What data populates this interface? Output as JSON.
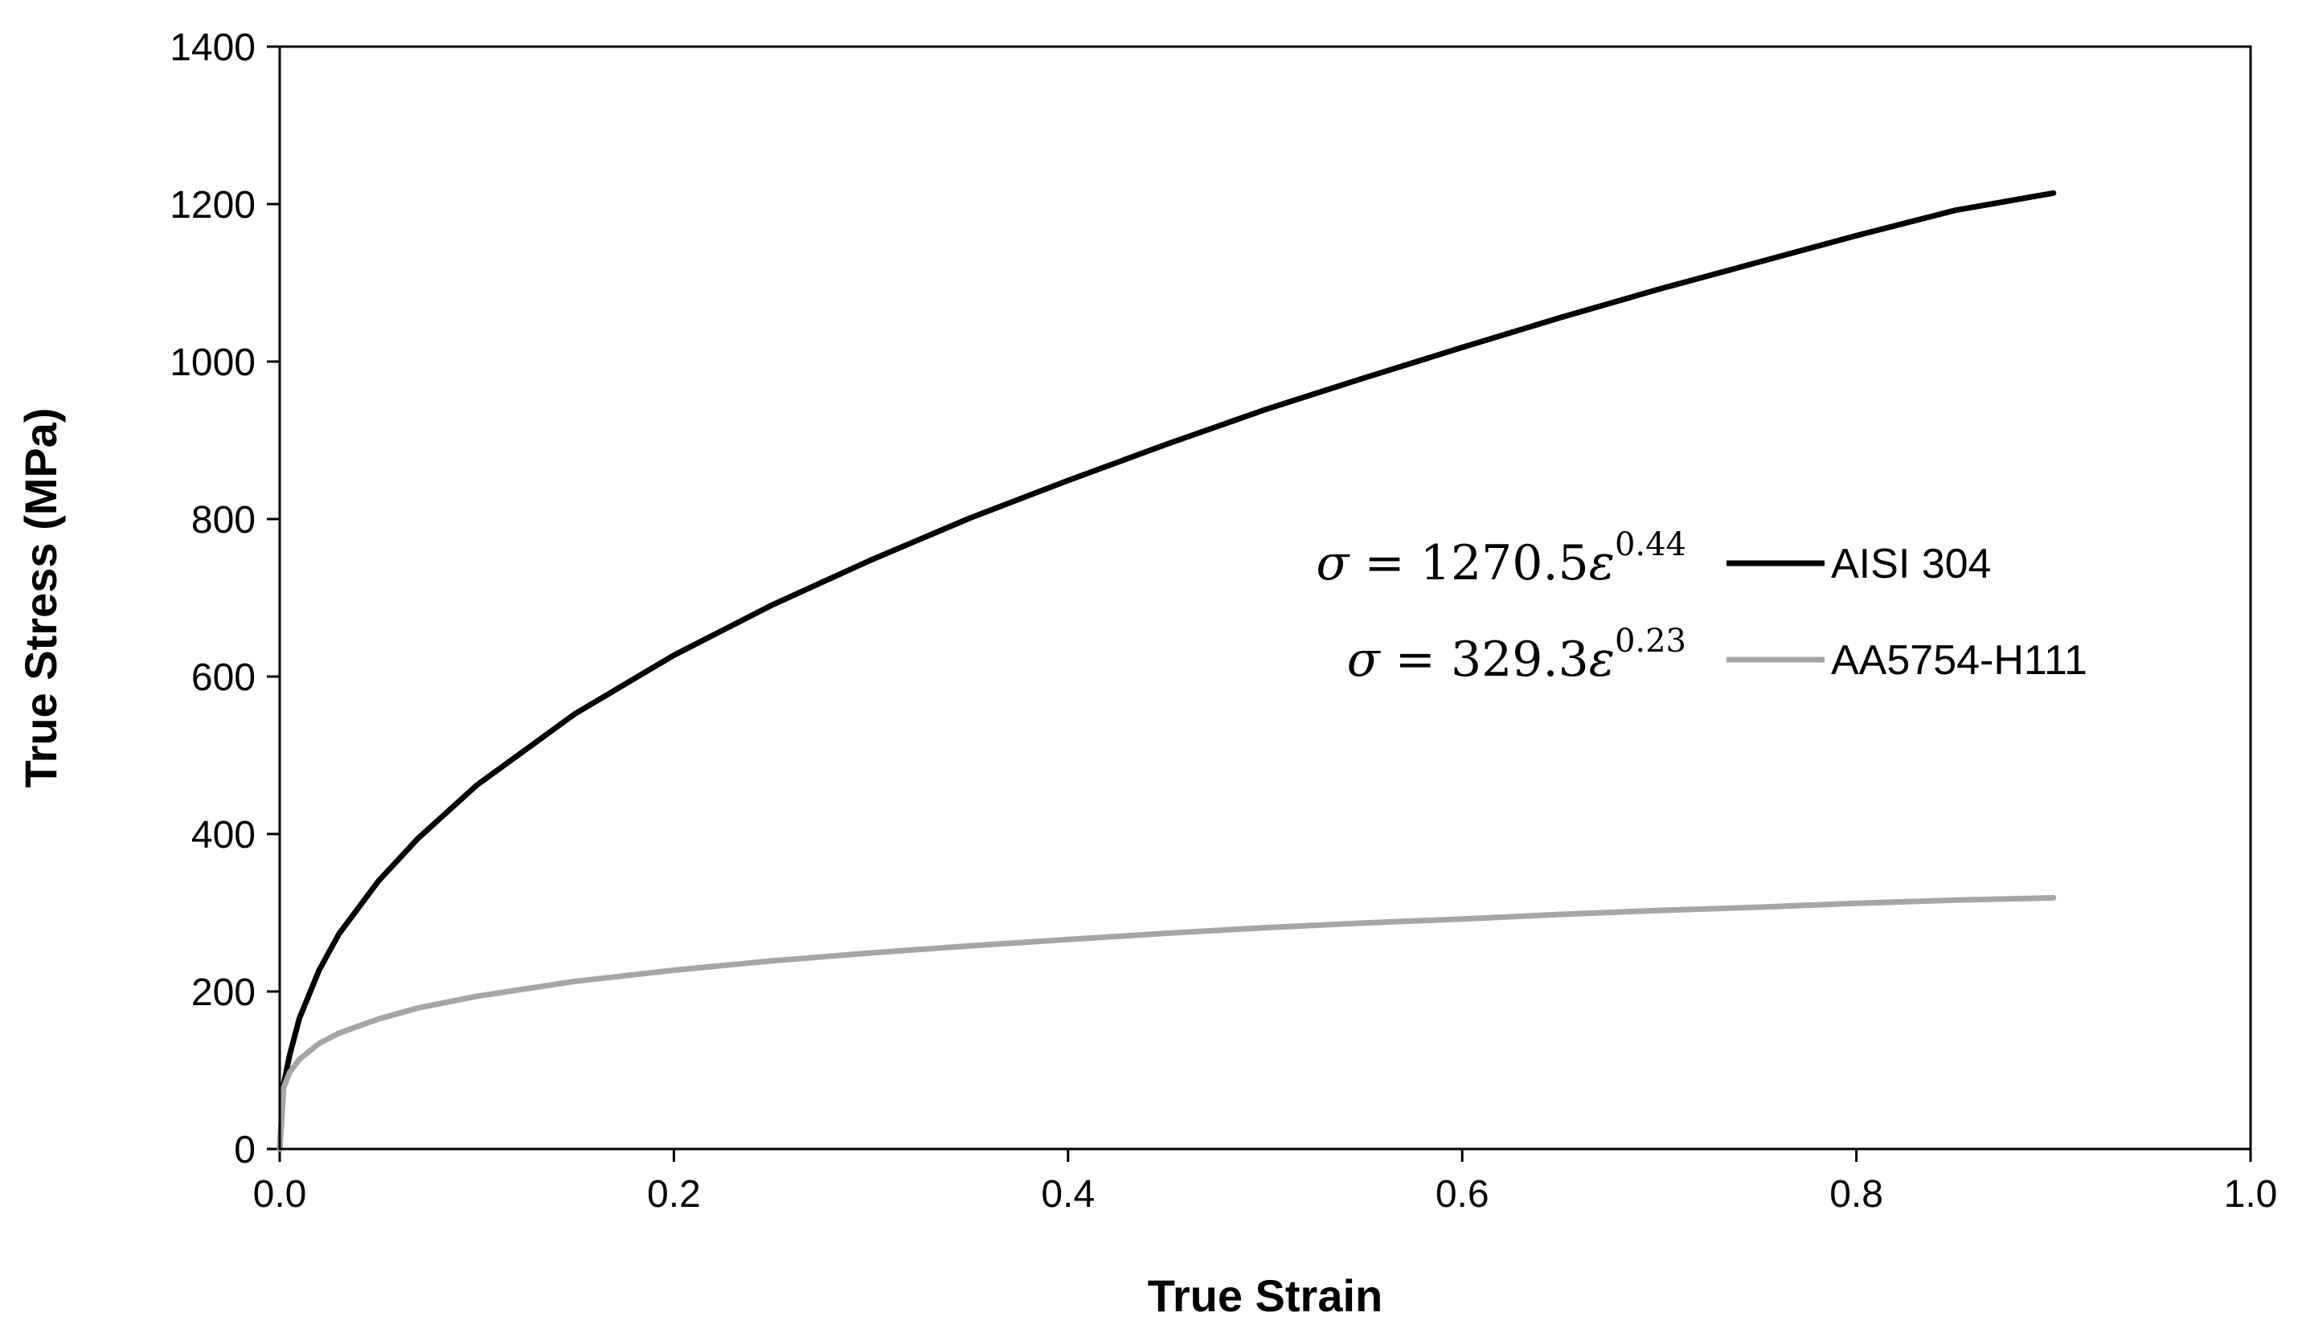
{
  "chart_data": {
    "type": "line",
    "xlabel": "True Strain",
    "ylabel": "True Stress (MPa)",
    "xlim": [
      0.0,
      1.0
    ],
    "ylim": [
      0,
      1400
    ],
    "x_ticks": [
      "0.0",
      "0.2",
      "0.4",
      "0.6",
      "0.8",
      "1.0"
    ],
    "y_ticks": [
      "0",
      "200",
      "400",
      "600",
      "800",
      "1000",
      "1200",
      "1400"
    ],
    "grid": false,
    "legend_position": "center-right",
    "series": [
      {
        "name": "AISI 304",
        "color": "#000000",
        "equation": {
          "sigma": "σ",
          "equals": "=",
          "coefficient": "1270.5",
          "epsilon": "ε",
          "exponent": "0.44"
        },
        "x": [
          0.0,
          0.002,
          0.005,
          0.01,
          0.02,
          0.03,
          0.05,
          0.07,
          0.1,
          0.15,
          0.2,
          0.25,
          0.3,
          0.35,
          0.4,
          0.45,
          0.5,
          0.55,
          0.6,
          0.65,
          0.7,
          0.75,
          0.8,
          0.85,
          0.9
        ],
        "y": [
          0,
          82,
          119,
          166,
          227,
          273,
          340,
          394,
          462,
          553,
          627,
          691,
          748,
          801,
          849,
          895,
          939,
          979,
          1018,
          1056,
          1092,
          1126,
          1160,
          1192,
          1214
        ]
      },
      {
        "name": "AA5754-H111",
        "color": "#a6a6a6",
        "equation": {
          "sigma": "σ",
          "equals": "=",
          "coefficient": "329.3",
          "epsilon": "ε",
          "exponent": "0.23"
        },
        "x": [
          0.0,
          0.002,
          0.005,
          0.01,
          0.02,
          0.03,
          0.05,
          0.07,
          0.1,
          0.15,
          0.2,
          0.25,
          0.3,
          0.35,
          0.4,
          0.45,
          0.5,
          0.55,
          0.6,
          0.65,
          0.7,
          0.75,
          0.8,
          0.85,
          0.9
        ],
        "y": [
          0,
          78,
          97,
          114,
          134,
          147,
          165,
          179,
          194,
          213,
          227,
          239,
          249,
          258,
          266,
          274,
          281,
          287,
          292,
          298,
          303,
          307,
          312,
          316,
          319
        ]
      }
    ]
  }
}
